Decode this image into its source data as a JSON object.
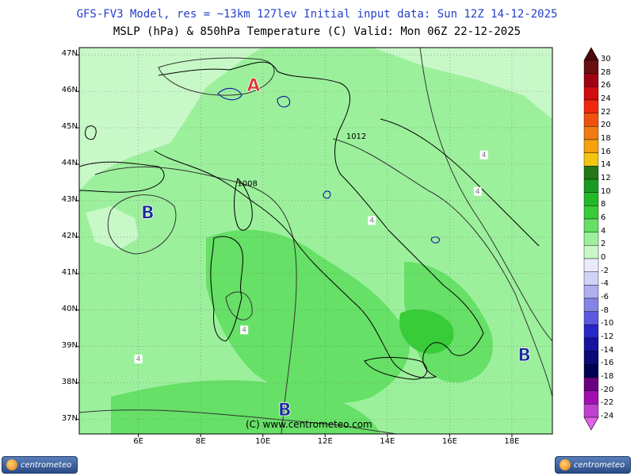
{
  "title_line1": "GFS-FV3 Model, res = ~13km 127lev   Initial input data: Sun 12Z 14-12-2025",
  "title_line2": "MSLP (hPa) & 850hPa Temperature (C)  Valid: Mon 06Z 22-12-2025",
  "x_axis": {
    "ticks": [
      "6E",
      "8E",
      "10E",
      "12E",
      "14E",
      "16E",
      "18E"
    ],
    "values": [
      6,
      8,
      10,
      12,
      14,
      16,
      18
    ],
    "range": [
      4.1,
      19.3
    ]
  },
  "y_axis": {
    "ticks": [
      "47N",
      "46N",
      "45N",
      "44N",
      "43N",
      "42N",
      "41N",
      "40N",
      "39N",
      "38N",
      "37N"
    ],
    "values": [
      47,
      46,
      45,
      44,
      43,
      42,
      41,
      40,
      39,
      38,
      37
    ],
    "range": [
      36.6,
      47.2
    ]
  },
  "pressure_systems": [
    {
      "symbol": "A",
      "lon": 9.7,
      "lat": 46.2,
      "color": "#e03030"
    },
    {
      "symbol": "B",
      "lon": 6.3,
      "lat": 42.7,
      "color": "#1a2a9a"
    },
    {
      "symbol": "B",
      "lon": 10.7,
      "lat": 37.3,
      "color": "#1a2a9a"
    },
    {
      "symbol": "B",
      "lon": 18.4,
      "lat": 38.8,
      "color": "#1a2a9a"
    }
  ],
  "isobar_labels": [
    {
      "text": "1012",
      "lon": 13.0,
      "lat": 44.7
    },
    {
      "text": "1008",
      "lon": 9.5,
      "lat": 43.4
    }
  ],
  "isotherm_labels": [
    {
      "text": "4",
      "lon": 17.1,
      "lat": 44.2
    },
    {
      "text": "4",
      "lon": 16.9,
      "lat": 43.2
    },
    {
      "text": "4",
      "lon": 13.5,
      "lat": 42.4
    },
    {
      "text": "4",
      "lon": 9.4,
      "lat": 39.4
    },
    {
      "text": "4",
      "lon": 6.0,
      "lat": 38.6
    }
  ],
  "colorbar": {
    "labels": [
      "30",
      "28",
      "26",
      "24",
      "22",
      "20",
      "18",
      "16",
      "14",
      "12",
      "10",
      "8",
      "6",
      "4",
      "2",
      "0",
      "-2",
      "-4",
      "-6",
      "-8",
      "-10",
      "-12",
      "-14",
      "-16",
      "-18",
      "-20",
      "-22",
      "-24"
    ],
    "colors": [
      "#4a0a0a",
      "#6a0f12",
      "#a00010",
      "#d00c10",
      "#f02810",
      "#f05010",
      "#f07b12",
      "#f6a00c",
      "#f4c410",
      "#247818",
      "#1a9a22",
      "#22b828",
      "#38cc38",
      "#66e066",
      "#9cf09c",
      "#c8f8c8",
      "#eaeaff",
      "#d2d2f6",
      "#aeaef0",
      "#8484e6",
      "#5a5ade",
      "#2828c8",
      "#1414a0",
      "#0a0a78",
      "#000050",
      "#6a0080",
      "#a010b0",
      "#c040d0",
      "#e060e8"
    ]
  },
  "watermark": "(C) www.centrometeo.com",
  "logo_left": "centrometeo",
  "logo_right": "centrometeo"
}
